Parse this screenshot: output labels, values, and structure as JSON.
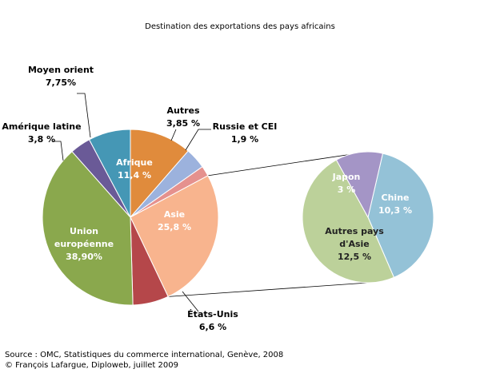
{
  "chart_data": [
    {
      "type": "pie",
      "title": "Destination des exportations des pays africains",
      "slices": [
        {
          "name": "Afrique",
          "value": 11.4,
          "label": "Afrique",
          "value_label": "11,4 %",
          "color": "#e08b3c"
        },
        {
          "name": "Autres",
          "value": 3.85,
          "label": "Autres",
          "value_label": "3,85 %",
          "color": "#9cb2dd"
        },
        {
          "name": "Russie et CEI",
          "value": 1.9,
          "label": "Russie et CEI",
          "value_label": "1,9 %",
          "color": "#e5918e"
        },
        {
          "name": "Asie",
          "value": 25.8,
          "label": "Asie",
          "value_label": "25,8 %",
          "color": "#f8b48e"
        },
        {
          "name": "États-Unis",
          "value": 6.6,
          "label": "États-Unis",
          "value_label": "6,6 %",
          "color": "#b5474a"
        },
        {
          "name": "Union européenne",
          "value": 38.9,
          "label": [
            "Union",
            "européenne"
          ],
          "value_label": "38,90%",
          "color": "#8aa84d"
        },
        {
          "name": "Amérique latine",
          "value": 3.8,
          "label": "Amérique latine",
          "value_label": "3,8 %",
          "color": "#6a5a97"
        },
        {
          "name": "Moyen orient",
          "value": 7.75,
          "label": "Moyen orient",
          "value_label": "7,75%",
          "color": "#4597b5"
        }
      ]
    },
    {
      "type": "pie",
      "breakdown_of": "Asie",
      "slices": [
        {
          "name": "Chine",
          "value": 10.3,
          "label": "Chine",
          "value_label": "10,3 %",
          "color": "#94c2d7"
        },
        {
          "name": "Autres pays d'Asie",
          "value": 12.5,
          "label": [
            "Autres pays",
            "d'Asie"
          ],
          "value_label": "12,5 %",
          "color": "#bcd19a"
        },
        {
          "name": "Japon",
          "value": 3,
          "label": "Japon",
          "value_label": "3 %",
          "color": "#a495c6"
        }
      ]
    }
  ],
  "source": {
    "line1": "Source : OMC, Statistiques du commerce international, Genève, 2008",
    "line2": "© François Lafargue, Diploweb, juillet 2009"
  }
}
